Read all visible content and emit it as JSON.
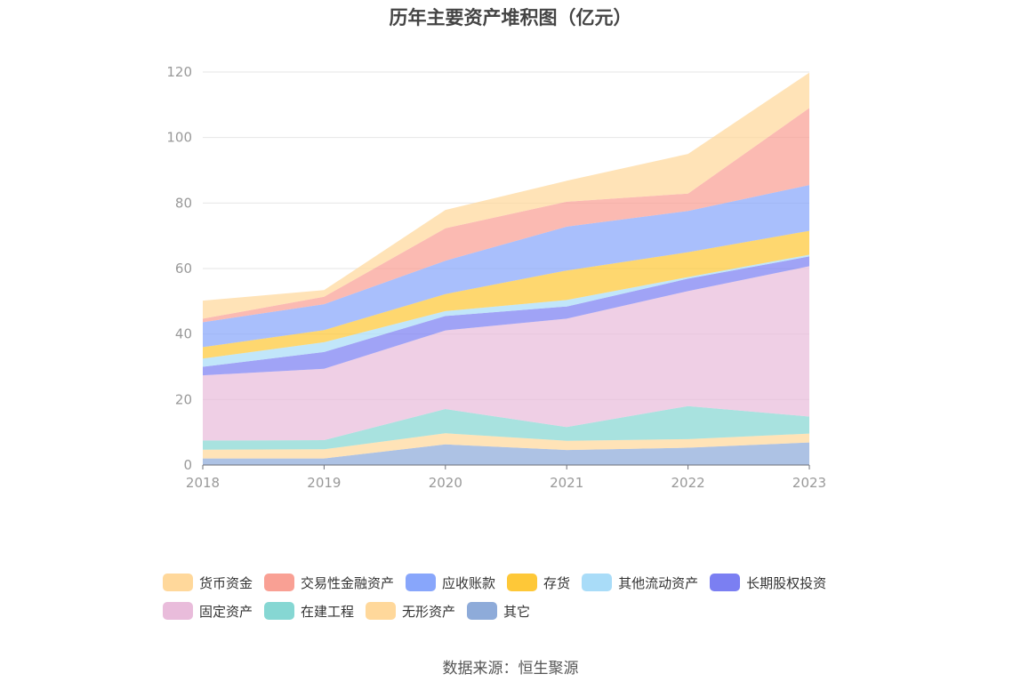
{
  "chart_data": {
    "type": "area",
    "stacked": true,
    "title": "历年主要资产堆积图（亿元）",
    "x": [
      "2018",
      "2019",
      "2020",
      "2021",
      "2022",
      "2023"
    ],
    "y_ticks": [
      "0",
      "20",
      "40",
      "60",
      "80",
      "100",
      "120"
    ],
    "ylim": [
      0,
      120
    ],
    "grid": true,
    "legend_position": "bottom",
    "series": [
      {
        "name": "其它",
        "color": "#8eabd9",
        "values": [
          2.0,
          2.0,
          6.3,
          4.6,
          5.3,
          6.9
        ]
      },
      {
        "name": "无形资产",
        "color": "#ffd89b",
        "values": [
          2.7,
          2.8,
          3.4,
          2.8,
          2.6,
          2.7
        ]
      },
      {
        "name": "在建工程",
        "color": "#86d7d3",
        "values": [
          2.8,
          2.8,
          7.4,
          4.2,
          10.1,
          5.2
        ]
      },
      {
        "name": "固定资产",
        "color": "#e9bcdb",
        "values": [
          19.9,
          21.8,
          24.0,
          33.1,
          35.1,
          45.9
        ]
      },
      {
        "name": "长期股权投资",
        "color": "#7b7ff2",
        "values": [
          2.6,
          5.1,
          4.4,
          3.7,
          3.8,
          3.0
        ]
      },
      {
        "name": "其他流动资产",
        "color": "#a9dcf8",
        "values": [
          2.5,
          3.0,
          1.5,
          2.0,
          0.5,
          0.5
        ]
      },
      {
        "name": "存货",
        "color": "#fec838",
        "values": [
          3.5,
          3.7,
          5.2,
          9.0,
          7.6,
          7.3
        ]
      },
      {
        "name": "应收账款",
        "color": "#88a6fb",
        "values": [
          7.6,
          7.9,
          10.2,
          13.4,
          12.6,
          14.0
        ]
      },
      {
        "name": "交易性金融资产",
        "color": "#f9a094",
        "values": [
          1.1,
          2.3,
          9.9,
          7.6,
          5.3,
          23.5
        ]
      },
      {
        "name": "货币资金",
        "color": "#ffd89b",
        "values": [
          5.5,
          2.0,
          5.6,
          6.4,
          12.1,
          10.8
        ]
      }
    ],
    "legend_order": [
      "货币资金",
      "交易性金融资产",
      "应收账款",
      "存货",
      "其他流动资产",
      "长期股权投资",
      "固定资产",
      "在建工程",
      "无形资产",
      "其它"
    ]
  },
  "source": "数据来源：恒生聚源"
}
